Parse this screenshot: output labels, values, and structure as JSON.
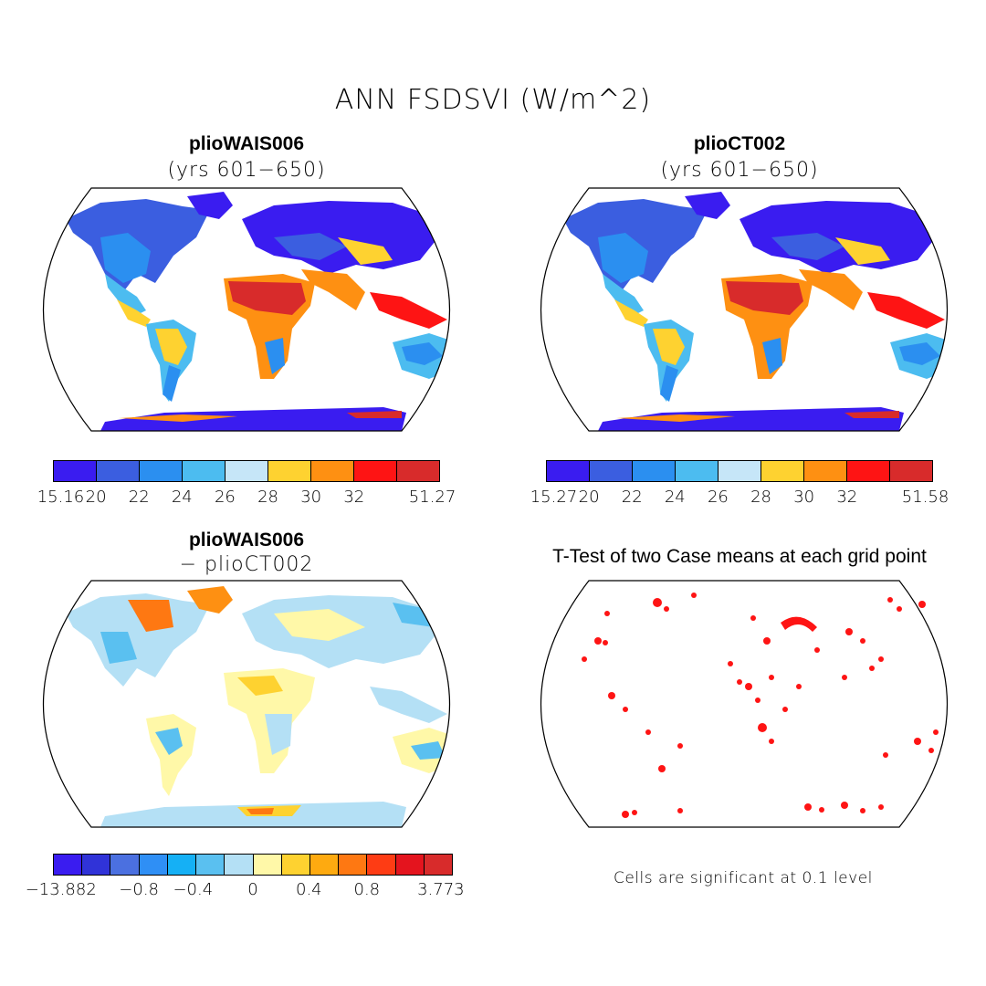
{
  "main_title": "ANN FSDSVI (W/m^2)",
  "panels": {
    "top_left": {
      "title": "plioWAIS006",
      "subtitle": "(yrs 601−650)"
    },
    "top_right": {
      "title": "plioCT002",
      "subtitle": "(yrs 601−650)"
    },
    "bottom_left": {
      "title": "plioWAIS006",
      "subtitle": "− plioCT002"
    },
    "bottom_right": {
      "title": "T-Test of two Case means at each grid point",
      "note": "Cells are significant at 0.1 level"
    }
  },
  "colorbars": {
    "top_left": {
      "labels": [
        "15.16",
        "20",
        "22",
        "24",
        "26",
        "28",
        "30",
        "32",
        "51.27"
      ],
      "colors": [
        "#3a1cf0",
        "#3b5ee0",
        "#2b8ff0",
        "#4cbcf0",
        "#c6e6f8",
        "#fed230",
        "#fe9012",
        "#fe1414",
        "#d82b2b"
      ]
    },
    "top_right": {
      "labels": [
        "15.27",
        "20",
        "22",
        "24",
        "26",
        "28",
        "30",
        "32",
        "51.58"
      ],
      "colors": [
        "#3a1cf0",
        "#3b5ee0",
        "#2b8ff0",
        "#4cbcf0",
        "#c6e6f8",
        "#fed230",
        "#fe9012",
        "#fe1414",
        "#d82b2b"
      ]
    },
    "bottom_left": {
      "labels": [
        "−13.882",
        "−0.8",
        "−0.4",
        "0",
        "0.4",
        "0.8",
        "3.773"
      ],
      "colors": [
        "#3a1cf0",
        "#3033d8",
        "#4b70e0",
        "#2f8ff5",
        "#15b0f5",
        "#5ac0f0",
        "#b4e0f5",
        "#fff8a8",
        "#fed230",
        "#feaa10",
        "#fe7812",
        "#fe3c14",
        "#e4141e",
        "#d82b2b"
      ]
    }
  }
}
